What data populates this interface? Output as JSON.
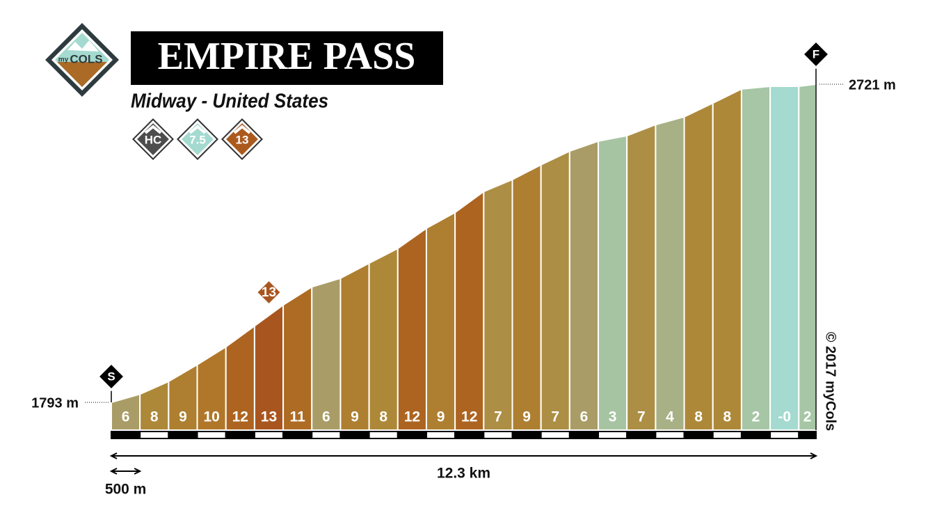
{
  "chart_data": {
    "type": "profile",
    "title": "EMPIRE PASS",
    "subtitle": "Midway - United States",
    "logo": {
      "small": "my",
      "big": "COLS"
    },
    "badges": [
      {
        "label": "HC",
        "color": "#4d4d4d"
      },
      {
        "label": "7.5",
        "color": "#a4dacf"
      },
      {
        "label": "13",
        "color": "#ab5a1e"
      }
    ],
    "x": [
      0,
      0.5,
      1,
      1.5,
      2,
      2.5,
      3,
      3.5,
      4,
      4.5,
      5,
      5.5,
      6,
      6.5,
      7,
      7.5,
      8,
      8.5,
      9,
      9.5,
      10,
      10.5,
      11,
      11.5,
      12,
      12.3
    ],
    "values": [
      1793,
      1817,
      1854,
      1903,
      1955,
      2016,
      2077,
      2130,
      2155,
      2199,
      2242,
      2301,
      2347,
      2408,
      2443,
      2486,
      2526,
      2555,
      2571,
      2603,
      2626,
      2666,
      2707,
      2715,
      2715,
      2721
    ],
    "gradients": [
      6,
      8,
      9,
      10,
      12,
      13,
      11,
      6,
      9,
      8,
      12,
      9,
      12,
      7,
      9,
      7,
      6,
      3,
      7,
      4,
      8,
      8,
      2,
      0,
      2
    ],
    "gradient_labels": [
      "6",
      "8",
      "9",
      "10",
      "12",
      "13",
      "11",
      "6",
      "9",
      "8",
      "12",
      "9",
      "12",
      "7",
      "9",
      "7",
      "6",
      "3",
      "7",
      "4",
      "8",
      "8",
      "2",
      "-0",
      "2"
    ],
    "colors": [
      "#a99c66",
      "#ad8838",
      "#ae7f30",
      "#b0772a",
      "#ad6420",
      "#a9551f",
      "#ae6b24",
      "#a99c66",
      "#ae7f30",
      "#ad8838",
      "#ad6420",
      "#ae7f30",
      "#ad6420",
      "#ad8e45",
      "#ae7f30",
      "#ad8e45",
      "#a99c66",
      "#a6c4a2",
      "#ad8e45",
      "#a8b085",
      "#ad8838",
      "#ad8838",
      "#a6c6a6",
      "#a4dacf",
      "#a6c6a6"
    ],
    "xlim": [
      0,
      12.3
    ],
    "ylim": [
      1712,
      2721
    ],
    "start_marker": "S",
    "end_marker": "F",
    "start_elevation": {
      "value": 1793,
      "label": "1793 m"
    },
    "end_elevation": {
      "value": 2721,
      "label": "2721 m"
    },
    "distance_label": "12.3 km",
    "scale_label": "500 m",
    "copyright": "© 2017 myCols"
  }
}
